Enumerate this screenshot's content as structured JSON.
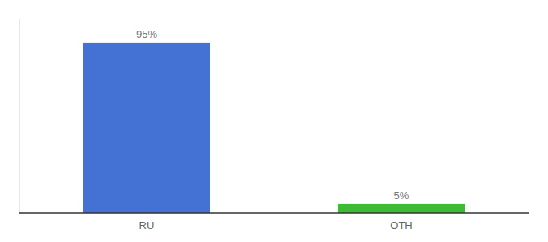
{
  "chart_data": {
    "type": "bar",
    "categories": [
      "RU",
      "OTH"
    ],
    "values": [
      95,
      5
    ],
    "value_labels": [
      "95%",
      "5%"
    ],
    "colors": [
      "#4472d4",
      "#3dbb35"
    ],
    "ylim": [
      0,
      108
    ],
    "data_labels": true,
    "tick_labels": "x"
  }
}
